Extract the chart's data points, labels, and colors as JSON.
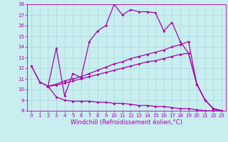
{
  "title": "",
  "xlabel": "Windchill (Refroidissement éolien,°C)",
  "ylabel": "",
  "xlim": [
    -0.5,
    23.5
  ],
  "ylim": [
    8,
    18
  ],
  "xticks": [
    0,
    1,
    2,
    3,
    4,
    5,
    6,
    7,
    8,
    9,
    10,
    11,
    12,
    13,
    14,
    15,
    16,
    17,
    18,
    19,
    20,
    21,
    22,
    23
  ],
  "yticks": [
    8,
    9,
    10,
    11,
    12,
    13,
    14,
    15,
    16,
    17,
    18
  ],
  "background_color": "#c8eef0",
  "grid_color": "#b0d8da",
  "line_color": "#aa00aa",
  "line1_x": [
    0,
    1,
    2,
    3,
    4,
    5,
    6,
    7,
    8,
    9,
    10,
    11,
    12,
    13,
    14,
    15,
    16,
    17,
    18,
    19,
    20,
    21,
    22,
    23
  ],
  "line1_y": [
    12.2,
    10.7,
    10.3,
    13.9,
    9.4,
    11.5,
    11.1,
    14.5,
    15.5,
    16.0,
    18.0,
    17.0,
    17.5,
    17.3,
    17.3,
    17.2,
    15.5,
    16.3,
    14.5,
    13.4,
    10.5,
    9.0,
    8.2,
    8.0
  ],
  "line2_x": [
    2,
    3,
    4,
    5,
    6,
    7,
    8,
    9,
    10,
    11,
    12,
    13,
    14,
    15,
    16,
    17,
    18,
    19,
    20,
    21,
    22,
    23
  ],
  "line2_y": [
    10.3,
    10.5,
    10.8,
    11.0,
    11.2,
    11.5,
    11.8,
    12.1,
    12.4,
    12.6,
    12.9,
    13.1,
    13.3,
    13.5,
    13.7,
    14.0,
    14.2,
    14.5,
    10.5,
    9.0,
    8.2,
    8.0
  ],
  "line3_x": [
    2,
    3,
    4,
    5,
    6,
    7,
    8,
    9,
    10,
    11,
    12,
    13,
    14,
    15,
    16,
    17,
    18,
    19,
    20,
    21,
    22,
    23
  ],
  "line3_y": [
    10.3,
    10.4,
    10.6,
    10.8,
    11.0,
    11.2,
    11.4,
    11.6,
    11.8,
    12.0,
    12.2,
    12.4,
    12.6,
    12.7,
    12.9,
    13.1,
    13.3,
    13.4,
    10.5,
    9.0,
    8.2,
    8.0
  ],
  "line4_x": [
    0,
    1,
    2,
    3,
    4,
    5,
    6,
    7,
    8,
    9,
    10,
    11,
    12,
    13,
    14,
    15,
    16,
    17,
    18,
    19,
    20,
    21,
    22,
    23
  ],
  "line4_y": [
    12.2,
    10.7,
    10.3,
    9.3,
    9.0,
    8.9,
    8.9,
    8.9,
    8.8,
    8.8,
    8.7,
    8.7,
    8.6,
    8.5,
    8.5,
    8.4,
    8.4,
    8.3,
    8.2,
    8.2,
    8.1,
    8.0,
    8.0,
    8.0
  ],
  "marker": "D",
  "markersize": 2.0,
  "linewidth": 0.9,
  "tick_fontsize": 5.0,
  "label_fontsize": 6.0
}
